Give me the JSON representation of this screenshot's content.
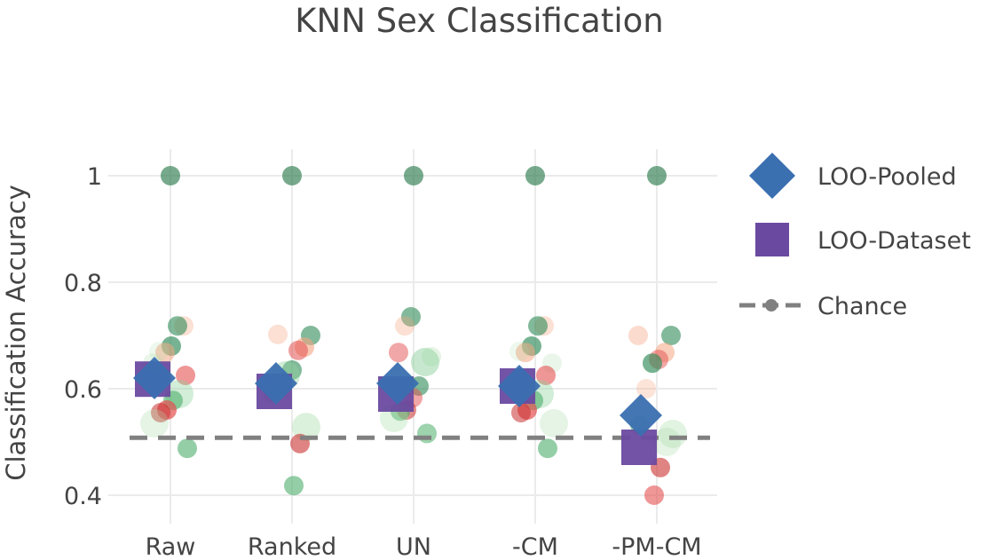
{
  "chart_data": {
    "type": "scatter",
    "title": "KNN Sex Classification",
    "xlabel": "",
    "ylabel": "Classification Accuracy",
    "categories": [
      "Raw",
      "Ranked",
      "UN",
      "-CM",
      "-PM-CM"
    ],
    "ylim": [
      0.37,
      1.05
    ],
    "yticks": [
      0.4,
      0.6,
      0.8,
      1
    ],
    "ytick_labels": [
      "0.4",
      "0.6",
      "0.8",
      "1"
    ],
    "grid": true,
    "legend_position": "top-right",
    "chance_level": 0.508,
    "series": [
      {
        "name": "LOO-Pooled",
        "marker": "diamond",
        "color": "#3a6fb0",
        "values": [
          0.62,
          0.61,
          0.61,
          0.605,
          0.55
        ]
      },
      {
        "name": "LOO-Dataset",
        "marker": "square",
        "color": "#6a4aa0",
        "values": [
          0.618,
          0.595,
          0.59,
          0.605,
          0.49
        ]
      },
      {
        "name": "Chance",
        "marker": "dash-dot",
        "color": "#808080",
        "values": [
          0.508,
          0.508,
          0.508,
          0.508,
          0.508
        ]
      }
    ],
    "per_dataset_points": [
      {
        "category": "Raw",
        "points": [
          {
            "y": 1.0,
            "color": "#2e7d4f",
            "opacity": 0.65,
            "size": "small"
          },
          {
            "y": 0.718,
            "color": "#f4a582",
            "opacity": 0.35,
            "size": "small"
          },
          {
            "y": 0.718,
            "color": "#2e8b57",
            "opacity": 0.6,
            "size": "small"
          },
          {
            "y": 0.68,
            "color": "#2e8b57",
            "opacity": 0.65,
            "size": "small"
          },
          {
            "y": 0.668,
            "color": "#f4a582",
            "opacity": 0.55,
            "size": "small"
          },
          {
            "y": 0.67,
            "color": "#a8dca8",
            "opacity": 0.2,
            "size": "small"
          },
          {
            "y": 0.648,
            "color": "#a8dca8",
            "opacity": 0.25,
            "size": "small"
          },
          {
            "y": 0.625,
            "color": "#e45050",
            "opacity": 0.6,
            "size": "small"
          },
          {
            "y": 0.59,
            "color": "#8fd19e",
            "opacity": 0.4,
            "size": "large"
          },
          {
            "y": 0.578,
            "color": "#4cae6a",
            "opacity": 0.6,
            "size": "small"
          },
          {
            "y": 0.56,
            "color": "#e45050",
            "opacity": 0.7,
            "size": "small"
          },
          {
            "y": 0.555,
            "color": "#c93030",
            "opacity": 0.55,
            "size": "small"
          },
          {
            "y": 0.535,
            "color": "#a8dca8",
            "opacity": 0.3,
            "size": "large"
          },
          {
            "y": 0.488,
            "color": "#4cae6a",
            "opacity": 0.6,
            "size": "small"
          }
        ]
      },
      {
        "category": "Ranked",
        "points": [
          {
            "y": 1.0,
            "color": "#2e7d4f",
            "opacity": 0.65,
            "size": "small"
          },
          {
            "y": 0.702,
            "color": "#f4a582",
            "opacity": 0.35,
            "size": "small"
          },
          {
            "y": 0.7,
            "color": "#2e8b57",
            "opacity": 0.6,
            "size": "small"
          },
          {
            "y": 0.678,
            "color": "#f4a582",
            "opacity": 0.6,
            "size": "small"
          },
          {
            "y": 0.672,
            "color": "#e45050",
            "opacity": 0.55,
            "size": "small"
          },
          {
            "y": 0.635,
            "color": "#2e8b57",
            "opacity": 0.6,
            "size": "small"
          },
          {
            "y": 0.625,
            "color": "#8fd19e",
            "opacity": 0.4,
            "size": "large"
          },
          {
            "y": 0.6,
            "color": "#e45050",
            "opacity": 0.6,
            "size": "small"
          },
          {
            "y": 0.59,
            "color": "#4cae6a",
            "opacity": 0.5,
            "size": "small"
          },
          {
            "y": 0.528,
            "color": "#a8dca8",
            "opacity": 0.4,
            "size": "large"
          },
          {
            "y": 0.497,
            "color": "#c93030",
            "opacity": 0.6,
            "size": "small"
          },
          {
            "y": 0.418,
            "color": "#4cae6a",
            "opacity": 0.6,
            "size": "small"
          }
        ]
      },
      {
        "category": "UN",
        "points": [
          {
            "y": 1.0,
            "color": "#2e7d4f",
            "opacity": 0.65,
            "size": "small"
          },
          {
            "y": 0.735,
            "color": "#2e8b57",
            "opacity": 0.6,
            "size": "small"
          },
          {
            "y": 0.718,
            "color": "#f4a582",
            "opacity": 0.35,
            "size": "small"
          },
          {
            "y": 0.668,
            "color": "#e45050",
            "opacity": 0.5,
            "size": "small"
          },
          {
            "y": 0.66,
            "color": "#a8dca8",
            "opacity": 0.3,
            "size": "small"
          },
          {
            "y": 0.65,
            "color": "#8fd19e",
            "opacity": 0.5,
            "size": "large"
          },
          {
            "y": 0.605,
            "color": "#2e8b57",
            "opacity": 0.6,
            "size": "small"
          },
          {
            "y": 0.583,
            "color": "#e45050",
            "opacity": 0.5,
            "size": "small"
          },
          {
            "y": 0.56,
            "color": "#c93030",
            "opacity": 0.55,
            "size": "small"
          },
          {
            "y": 0.558,
            "color": "#4cae6a",
            "opacity": 0.6,
            "size": "small"
          },
          {
            "y": 0.545,
            "color": "#a8dca8",
            "opacity": 0.35,
            "size": "large"
          },
          {
            "y": 0.516,
            "color": "#4cae6a",
            "opacity": 0.55,
            "size": "small"
          }
        ]
      },
      {
        "category": "-CM",
        "points": [
          {
            "y": 1.0,
            "color": "#2e7d4f",
            "opacity": 0.65,
            "size": "small"
          },
          {
            "y": 0.718,
            "color": "#f4a582",
            "opacity": 0.35,
            "size": "small"
          },
          {
            "y": 0.718,
            "color": "#2e8b57",
            "opacity": 0.6,
            "size": "small"
          },
          {
            "y": 0.68,
            "color": "#2e8b57",
            "opacity": 0.65,
            "size": "small"
          },
          {
            "y": 0.668,
            "color": "#f4a582",
            "opacity": 0.55,
            "size": "small"
          },
          {
            "y": 0.67,
            "color": "#a8dca8",
            "opacity": 0.2,
            "size": "small"
          },
          {
            "y": 0.648,
            "color": "#a8dca8",
            "opacity": 0.25,
            "size": "small"
          },
          {
            "y": 0.625,
            "color": "#e45050",
            "opacity": 0.6,
            "size": "small"
          },
          {
            "y": 0.59,
            "color": "#8fd19e",
            "opacity": 0.4,
            "size": "large"
          },
          {
            "y": 0.578,
            "color": "#4cae6a",
            "opacity": 0.6,
            "size": "small"
          },
          {
            "y": 0.56,
            "color": "#e45050",
            "opacity": 0.7,
            "size": "small"
          },
          {
            "y": 0.555,
            "color": "#c93030",
            "opacity": 0.55,
            "size": "small"
          },
          {
            "y": 0.535,
            "color": "#a8dca8",
            "opacity": 0.3,
            "size": "large"
          },
          {
            "y": 0.488,
            "color": "#4cae6a",
            "opacity": 0.6,
            "size": "small"
          }
        ]
      },
      {
        "category": "-PM-CM",
        "points": [
          {
            "y": 1.0,
            "color": "#2e7d4f",
            "opacity": 0.65,
            "size": "small"
          },
          {
            "y": 0.7,
            "color": "#f4a582",
            "opacity": 0.4,
            "size": "small"
          },
          {
            "y": 0.7,
            "color": "#2e8b57",
            "opacity": 0.6,
            "size": "small"
          },
          {
            "y": 0.668,
            "color": "#f4a582",
            "opacity": 0.55,
            "size": "small"
          },
          {
            "y": 0.655,
            "color": "#e45050",
            "opacity": 0.5,
            "size": "small"
          },
          {
            "y": 0.648,
            "color": "#2e8b57",
            "opacity": 0.65,
            "size": "small"
          },
          {
            "y": 0.6,
            "color": "#f4a582",
            "opacity": 0.3,
            "size": "small"
          },
          {
            "y": 0.532,
            "color": "#4cae6a",
            "opacity": 0.6,
            "size": "small"
          },
          {
            "y": 0.515,
            "color": "#a8dca8",
            "opacity": 0.35,
            "size": "large"
          },
          {
            "y": 0.5,
            "color": "#a8dca8",
            "opacity": 0.3,
            "size": "large"
          },
          {
            "y": 0.452,
            "color": "#c93030",
            "opacity": 0.6,
            "size": "small"
          },
          {
            "y": 0.4,
            "color": "#e45050",
            "opacity": 0.6,
            "size": "small"
          }
        ]
      }
    ]
  }
}
